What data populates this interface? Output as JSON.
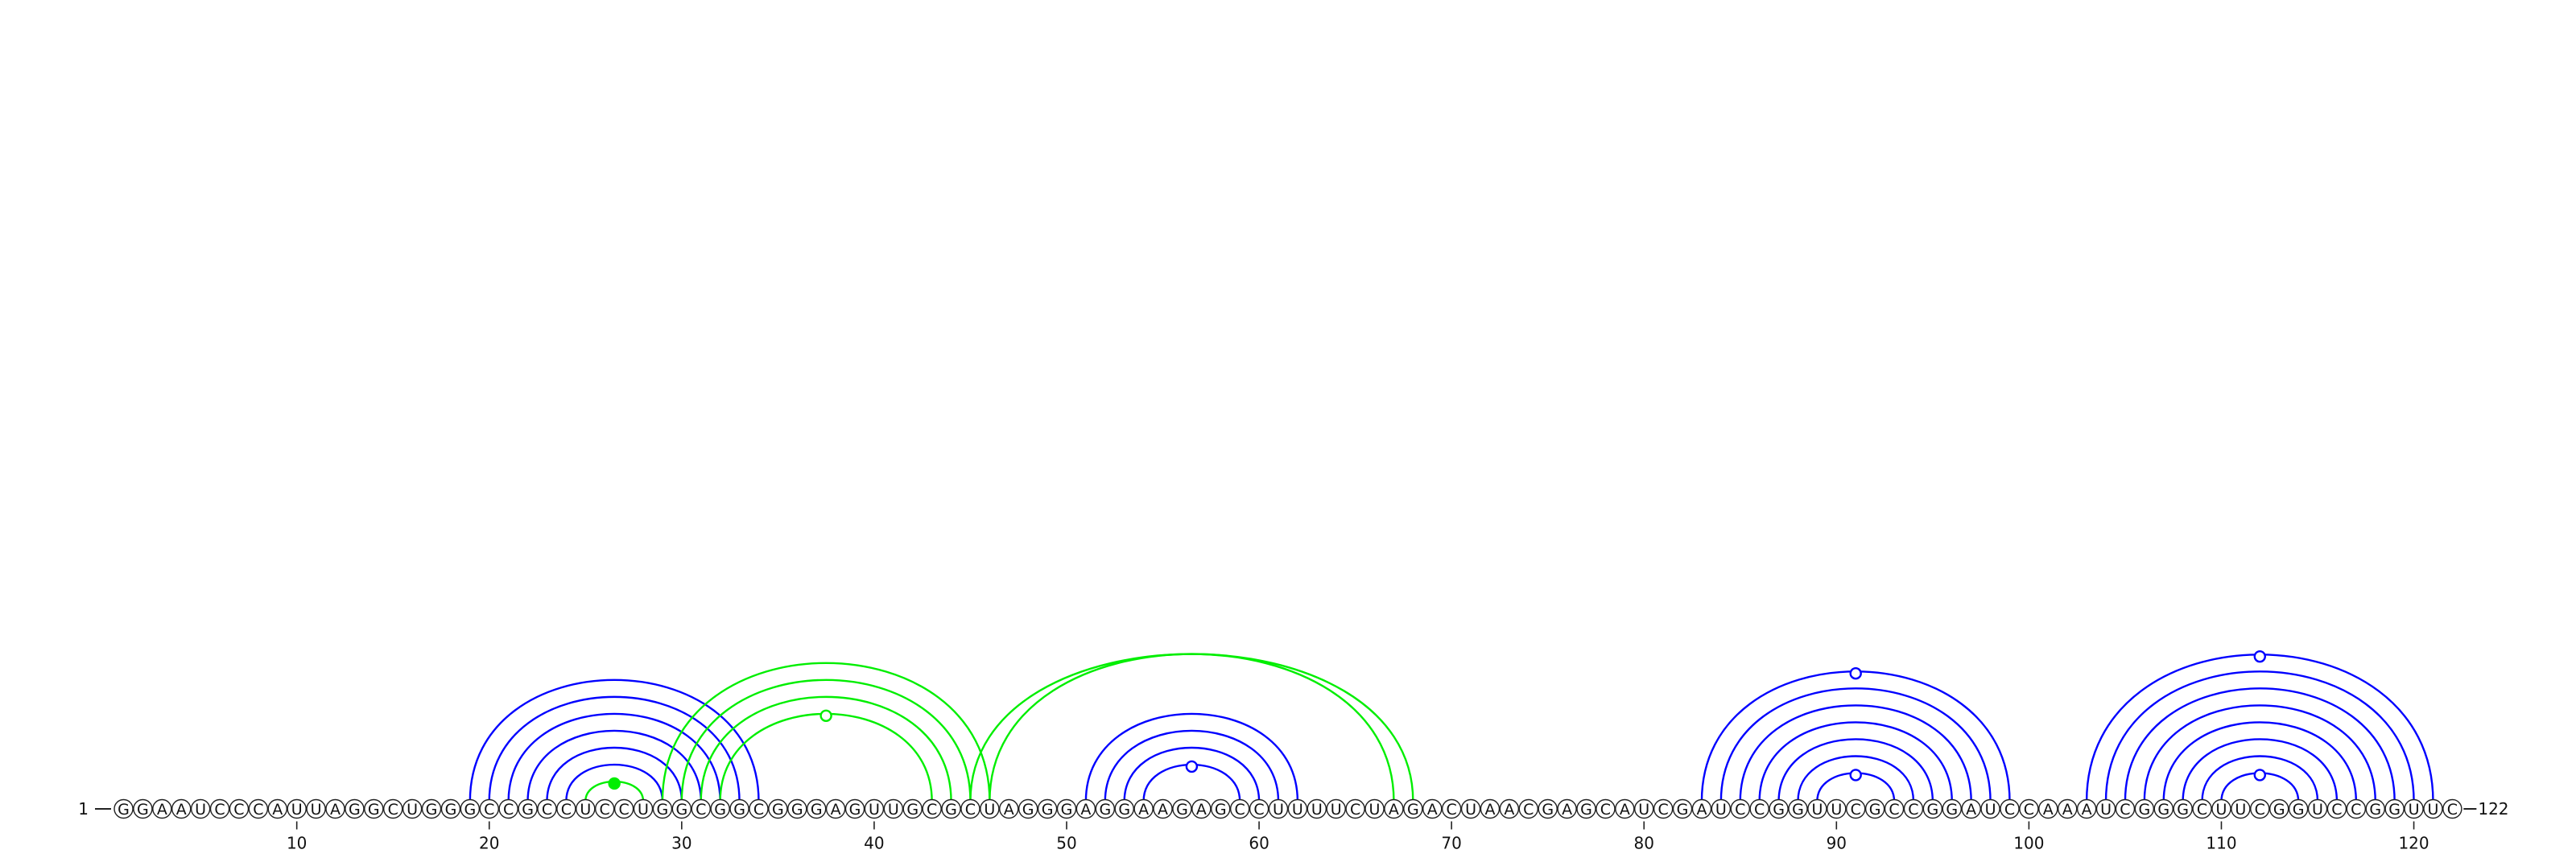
{
  "sequence": {
    "bases": "GGAAUCCCAUUAGGCUGGGCCGCCUCCUGGCGGCGGGAGUUGCGCUAGGGAGGAAGAGCCUUUUCUAGACUAACGAGCAUCGAUCCGGUUCGCCGGAUCCAAAUCGGGCUUCGGUCCGGUUC",
    "start_label": "1",
    "end_label": "122",
    "ticks": [
      10,
      20,
      30,
      40,
      50,
      60,
      70,
      80,
      90,
      100,
      110,
      120
    ]
  },
  "colors": {
    "paired": "#0000ff",
    "pseudoknot": "#00ee00",
    "base_fill": "#ffffff",
    "base_stroke": "#222222",
    "text": "#111111"
  },
  "arc_groups": [
    {
      "color": "pseudoknot",
      "marker": "filled",
      "pairs": [
        [
          25,
          28
        ]
      ]
    },
    {
      "color": "paired",
      "marker": "none",
      "pairs": [
        [
          19,
          34
        ],
        [
          20,
          33
        ],
        [
          21,
          32
        ],
        [
          22,
          31
        ],
        [
          23,
          30
        ],
        [
          24,
          29
        ]
      ]
    },
    {
      "color": "pseudoknot",
      "marker": "open",
      "pairs": [
        [
          29,
          46
        ],
        [
          30,
          45
        ],
        [
          31,
          44
        ],
        [
          32,
          43
        ]
      ]
    },
    {
      "color": "pseudoknot",
      "marker": "none",
      "pairs": [
        [
          45,
          68
        ],
        [
          46,
          67
        ]
      ]
    },
    {
      "color": "paired",
      "marker": "open",
      "pairs": [
        [
          51,
          62
        ],
        [
          52,
          61
        ],
        [
          53,
          60
        ],
        [
          54,
          59
        ]
      ]
    },
    {
      "color": "paired",
      "marker": "open",
      "pairs": [
        [
          83,
          99
        ],
        [
          84,
          98
        ],
        [
          85,
          97
        ],
        [
          86,
          96
        ],
        [
          87,
          95
        ],
        [
          88,
          94
        ],
        [
          89,
          93
        ]
      ]
    },
    {
      "color": "paired",
      "marker": "open",
      "pairs": [
        [
          103,
          121
        ],
        [
          104,
          120
        ],
        [
          105,
          119
        ],
        [
          106,
          118
        ],
        [
          107,
          117
        ],
        [
          108,
          116
        ],
        [
          109,
          115
        ],
        [
          110,
          114
        ]
      ]
    }
  ]
}
